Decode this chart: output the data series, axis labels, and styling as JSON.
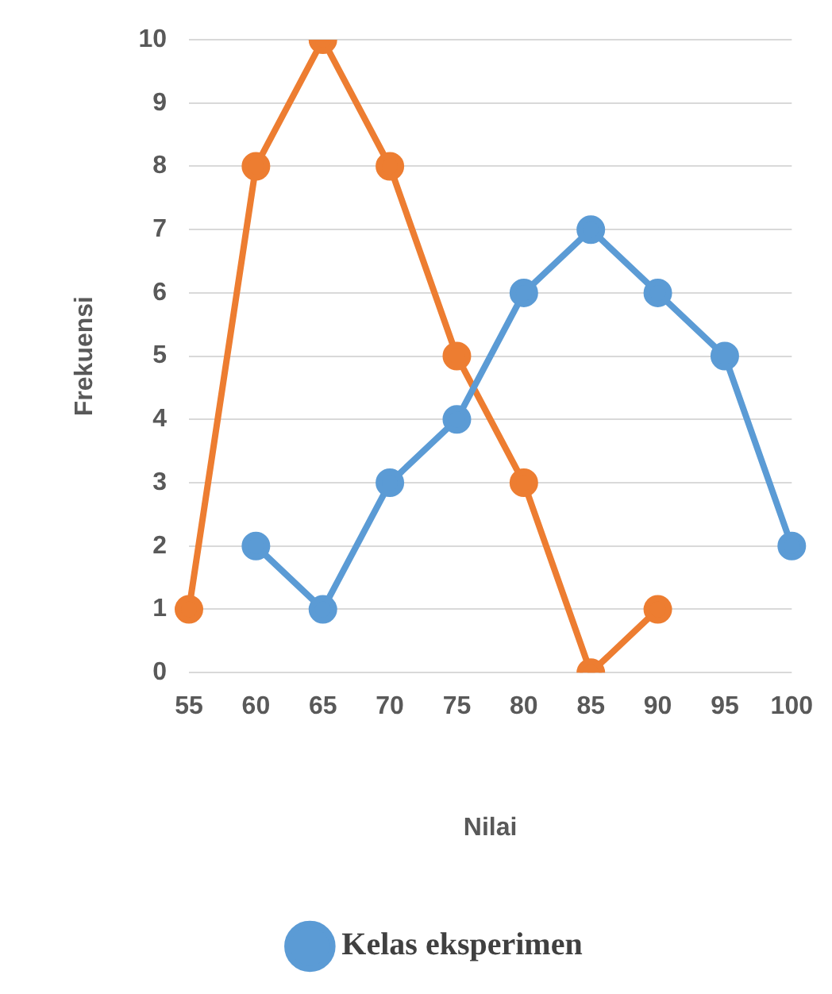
{
  "chart_data": {
    "type": "line",
    "xlabel": "Nilai",
    "ylabel": "Frekuensi",
    "categories": [
      "55",
      "60",
      "65",
      "70",
      "75",
      "80",
      "85",
      "90",
      "95",
      "100"
    ],
    "series": [
      {
        "name": "Kelas eksperimen",
        "color": "#5b9bd5",
        "values": [
          null,
          2,
          1,
          3,
          4,
          6,
          7,
          6,
          5,
          2
        ]
      },
      {
        "color": "#ed7d31",
        "values": [
          1,
          8,
          10,
          8,
          5,
          3,
          0,
          1,
          null,
          null
        ]
      }
    ],
    "ylim": [
      0,
      10
    ],
    "yticks": [
      0,
      1,
      2,
      3,
      4,
      5,
      6,
      7,
      8,
      9,
      10
    ],
    "grid": "y",
    "legend": "bottom",
    "marker": "circle",
    "line_style": "solid"
  }
}
